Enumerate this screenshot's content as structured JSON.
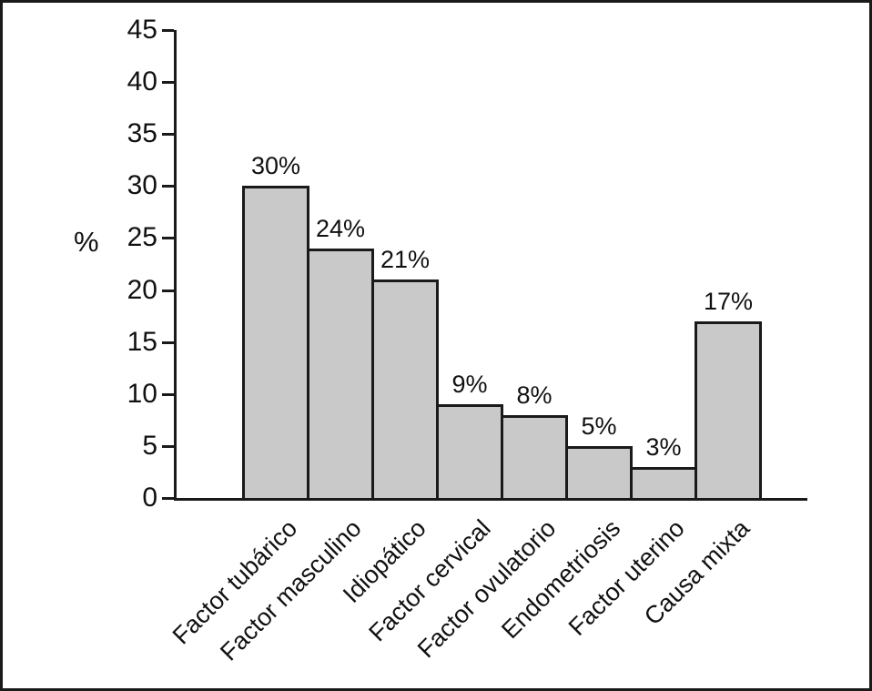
{
  "chart_data": {
    "type": "bar",
    "title": "",
    "ylabel": "%",
    "xlabel": "",
    "categories": [
      "Factor tubárico",
      "Factor masculino",
      "Idiopático",
      "Factor cervical",
      "Factor ovulatorio",
      "Endometriosis",
      "Factor uterino",
      "Causa mixta"
    ],
    "values": [
      30,
      24,
      21,
      9,
      8,
      5,
      3,
      17
    ],
    "bar_labels": [
      "30%",
      "24%",
      "21%",
      "9%",
      "8%",
      "5%",
      "3%",
      "17%"
    ],
    "yticks": [
      0,
      5,
      10,
      15,
      20,
      25,
      30,
      35,
      40,
      45
    ],
    "ylim": [
      0,
      45
    ],
    "grid": false,
    "legend_position": "none",
    "bar_fill_color": "#c9c9c9",
    "axis_color": "#1a1a1a",
    "background_color": "#ffffff",
    "x_label_rotation_deg": 45
  }
}
